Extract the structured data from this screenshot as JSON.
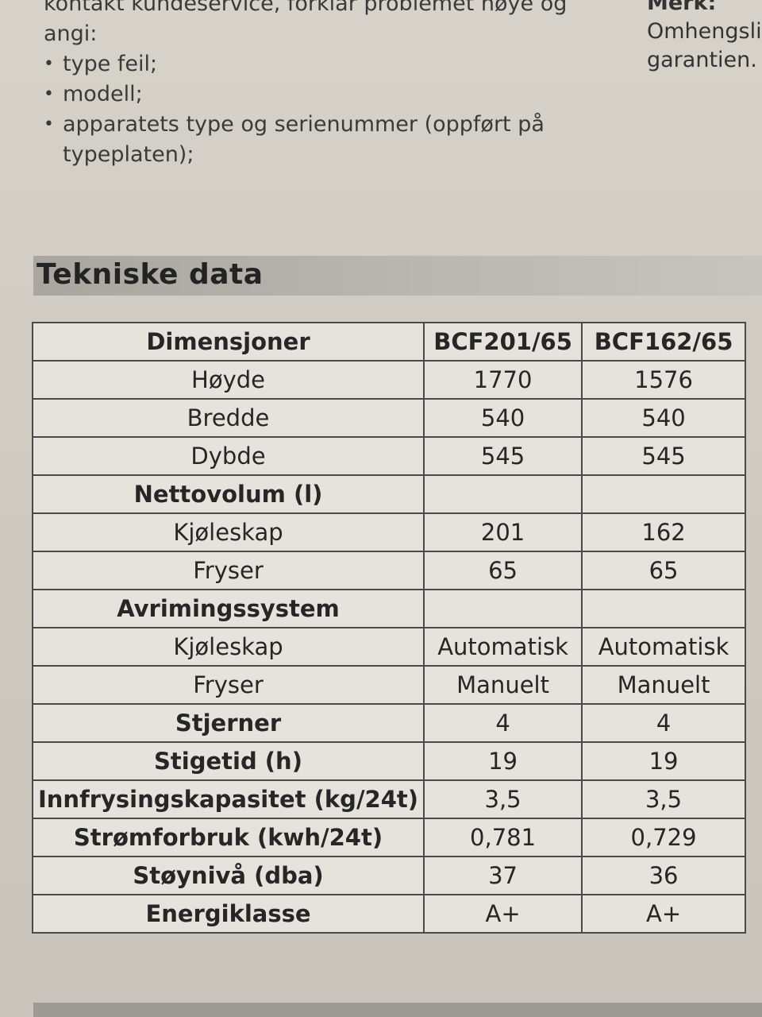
{
  "top_text": {
    "line1": "kontakt kundeservice, forklar problemet nøye og",
    "line2": "angi:",
    "bullets": [
      "type feil;",
      "modell;",
      "apparatets type og serienummer (oppført på"
    ],
    "bullet_continuation": "typeplaten);"
  },
  "side_note": {
    "label": "Merk:",
    "line1": "Omhengsli",
    "line2": "garantien."
  },
  "section": {
    "title": "Tekniske data"
  },
  "table": {
    "rows": [
      {
        "label": "Dimensjoner",
        "a": "BCF201/65",
        "b": "BCF162/65"
      },
      {
        "label": "Høyde",
        "a": "1770",
        "b": "1576"
      },
      {
        "label": "Bredde",
        "a": "540",
        "b": "540"
      },
      {
        "label": "Dybde",
        "a": "545",
        "b": "545"
      },
      {
        "label": "Nettovolum (l)",
        "a": "",
        "b": ""
      },
      {
        "label": "Kjøleskap",
        "a": "201",
        "b": "162"
      },
      {
        "label": "Fryser",
        "a": "65",
        "b": "65"
      },
      {
        "label": "Avrimingssystem",
        "a": "",
        "b": ""
      },
      {
        "label": "Kjøleskap",
        "a": "Automatisk",
        "b": "Automatisk"
      },
      {
        "label": "Fryser",
        "a": "Manuelt",
        "b": "Manuelt"
      },
      {
        "label": "Stjerner",
        "a": "4",
        "b": "4"
      },
      {
        "label": "Stigetid (h)",
        "a": "19",
        "b": "19"
      },
      {
        "label": "Innfrysingskapasitet (kg/24t)",
        "a": "3,5",
        "b": "3,5"
      },
      {
        "label": "Strømforbruk (kwh/24t)",
        "a": "0,781",
        "b": "0,729"
      },
      {
        "label": "Støynivå (dba)",
        "a": "37",
        "b": "36"
      },
      {
        "label": "Energiklasse",
        "a": "A+",
        "b": "A+"
      }
    ]
  }
}
